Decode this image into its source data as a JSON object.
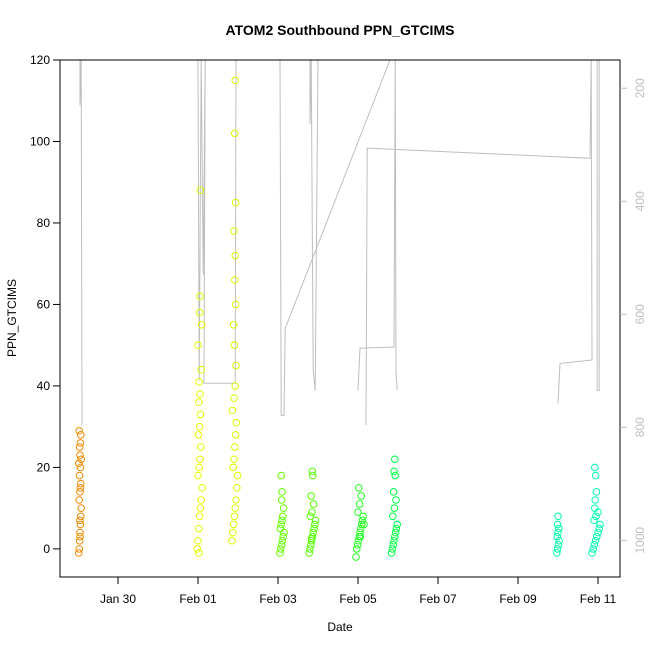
{
  "chart_data": {
    "type": "scatter",
    "title": "ATOM2 Southbound PPN_GTCIMS",
    "x_label": "Date",
    "y_label": "PPN_GTCIMS",
    "xlim": [
      28.55,
      42.55
    ],
    "xticks": [
      {
        "value": 30,
        "label": "Jan 30"
      },
      {
        "value": 32,
        "label": "Feb 01"
      },
      {
        "value": 34,
        "label": "Feb 03"
      },
      {
        "value": 36,
        "label": "Feb 05"
      },
      {
        "value": 38,
        "label": "Feb 07"
      },
      {
        "value": 40,
        "label": "Feb 09"
      },
      {
        "value": 42,
        "label": "Feb 11"
      }
    ],
    "ylim": [
      -6.9,
      120
    ],
    "yticks": [
      0,
      20,
      40,
      60,
      80,
      100,
      120
    ],
    "y2lim": [
      1065,
      150
    ],
    "y2ticks": [
      200,
      400,
      600,
      800,
      1000
    ],
    "y2_color": "#bebebe",
    "series": [
      {
        "color": "#f28a00",
        "x": [
          29.02,
          29.03,
          29.04,
          29.05,
          29.06,
          29.07,
          29.08,
          29.03,
          29.05,
          29.07,
          29.04,
          29.06,
          29.02,
          29.08,
          29.05,
          29.04,
          29.06,
          29.07,
          29.03,
          29.05,
          29.05,
          29.06
        ],
        "values": [
          -1,
          0,
          2,
          4,
          6,
          8,
          10,
          12,
          14,
          16,
          18,
          20,
          21,
          22,
          23,
          25,
          26,
          28,
          29,
          3,
          7,
          15
        ]
      },
      {
        "color": "#e5ff00",
        "x": [
          31.98,
          32.0,
          32.02,
          32.04,
          32.06,
          32.08,
          32.1,
          32.0,
          32.03,
          32.05,
          32.07,
          32.01,
          32.04,
          32.06,
          32.02,
          32.05,
          32.03,
          32.08,
          32.0,
          32.09,
          32.04,
          32.05,
          32.06,
          32.02
        ],
        "values": [
          0,
          2,
          5,
          8,
          10,
          12,
          15,
          18,
          20,
          22,
          25,
          28,
          30,
          33,
          36,
          38,
          41,
          44,
          50,
          55,
          58,
          62,
          88,
          -1
        ]
      },
      {
        "color": "#d8ff00",
        "x": [
          32.85,
          32.87,
          32.89,
          32.91,
          32.93,
          32.95,
          32.97,
          32.99,
          32.88,
          32.9,
          32.92,
          32.94,
          32.96,
          32.86,
          32.9,
          32.93,
          32.95,
          32.91,
          32.89,
          32.94,
          32.92,
          32.93,
          32.9,
          32.94,
          32.92,
          32.93
        ],
        "values": [
          2,
          4,
          6,
          8,
          10,
          12,
          15,
          18,
          20,
          22,
          25,
          28,
          31,
          34,
          37,
          40,
          45,
          50,
          55,
          60,
          66,
          72,
          78,
          85,
          102,
          115
        ]
      },
      {
        "color": "#66ff00",
        "x": [
          34.05,
          34.07,
          34.09,
          34.11,
          34.13,
          34.15,
          34.06,
          34.08,
          34.1,
          34.12,
          34.14,
          34.09,
          34.1,
          34.08
        ],
        "values": [
          -1,
          0,
          1,
          2,
          3,
          4,
          5,
          6,
          7,
          8,
          10,
          12,
          14,
          18
        ]
      },
      {
        "color": "#55ff00",
        "x": [
          34.78,
          34.8,
          34.82,
          34.84,
          34.86,
          34.88,
          34.9,
          34.92,
          34.94,
          34.81,
          34.85,
          34.89,
          34.83,
          34.87,
          34.86,
          34.84
        ],
        "values": [
          -1,
          0,
          1,
          2,
          3,
          4,
          5,
          6,
          7,
          8,
          9,
          11,
          13,
          18,
          19,
          2.5
        ]
      },
      {
        "color": "#22ff22",
        "x": [
          35.95,
          35.97,
          35.99,
          36.01,
          36.03,
          36.05,
          36.07,
          36.09,
          36.11,
          36.13,
          36.15,
          36.0,
          36.04,
          36.08,
          36.02,
          36.06
        ],
        "values": [
          -2,
          0,
          1,
          2,
          3,
          4,
          5,
          6,
          7,
          8,
          6,
          9,
          11,
          13,
          15,
          3
        ]
      },
      {
        "color": "#00ff44",
        "x": [
          36.84,
          36.86,
          36.88,
          36.9,
          36.92,
          36.94,
          36.96,
          36.98,
          36.87,
          36.91,
          36.95,
          36.89,
          36.93,
          36.9,
          36.92
        ],
        "values": [
          -1,
          0,
          1,
          2,
          3,
          4,
          5,
          6,
          8,
          10,
          12,
          14,
          18,
          19,
          22
        ]
      },
      {
        "color": "#00ffaa",
        "x": [
          40.97,
          40.99,
          41.01,
          41.03,
          40.98,
          41.0,
          41.02,
          40.99,
          41.0
        ],
        "values": [
          -1,
          0,
          1,
          2,
          3,
          4,
          5,
          6,
          8
        ]
      },
      {
        "color": "#00ffb4",
        "x": [
          41.85,
          41.88,
          41.91,
          41.94,
          41.97,
          42.0,
          42.03,
          42.05,
          41.9,
          41.95,
          42.0,
          41.92,
          41.93,
          41.96,
          41.94,
          41.92
        ],
        "values": [
          -1,
          0,
          1,
          2,
          3,
          4,
          5,
          6,
          7,
          8,
          9,
          10,
          12,
          14,
          18,
          20
        ]
      },
      {
        "type": "line",
        "axis": "y2",
        "color": "#bebebe",
        "x": [
          29.05,
          29.05,
          29.08,
          29.1,
          null,
          32.0,
          32.03,
          32.08,
          32.13,
          32.18,
          32.15,
          32.93,
          32.95,
          33.48,
          34.05,
          34.08,
          34.15,
          34.18,
          36.8,
          null,
          34.8,
          34.8,
          34.83,
          34.88,
          34.93,
          35.0,
          null,
          36.0,
          36.05,
          36.9,
          36.93,
          36.95,
          36.98,
          null,
          36.2,
          36.23,
          41.8,
          41.83,
          41.85,
          41.05,
          41.0,
          null,
          41.98,
          41.98,
          42.03,
          42.03
        ],
        "values": [
          150,
          230,
          150,
          796,
          null,
          150,
          717,
          150,
          531,
          150,
          722,
          722,
          150,
          150,
          150,
          779,
          779,
          625,
          150,
          null,
          150,
          264,
          150,
          699,
          735,
          150,
          null,
          735,
          660,
          658,
          150,
          700,
          735,
          null,
          796,
          306,
          324,
          150,
          681,
          687,
          758,
          null,
          150,
          735,
          735,
          150
        ]
      }
    ]
  }
}
